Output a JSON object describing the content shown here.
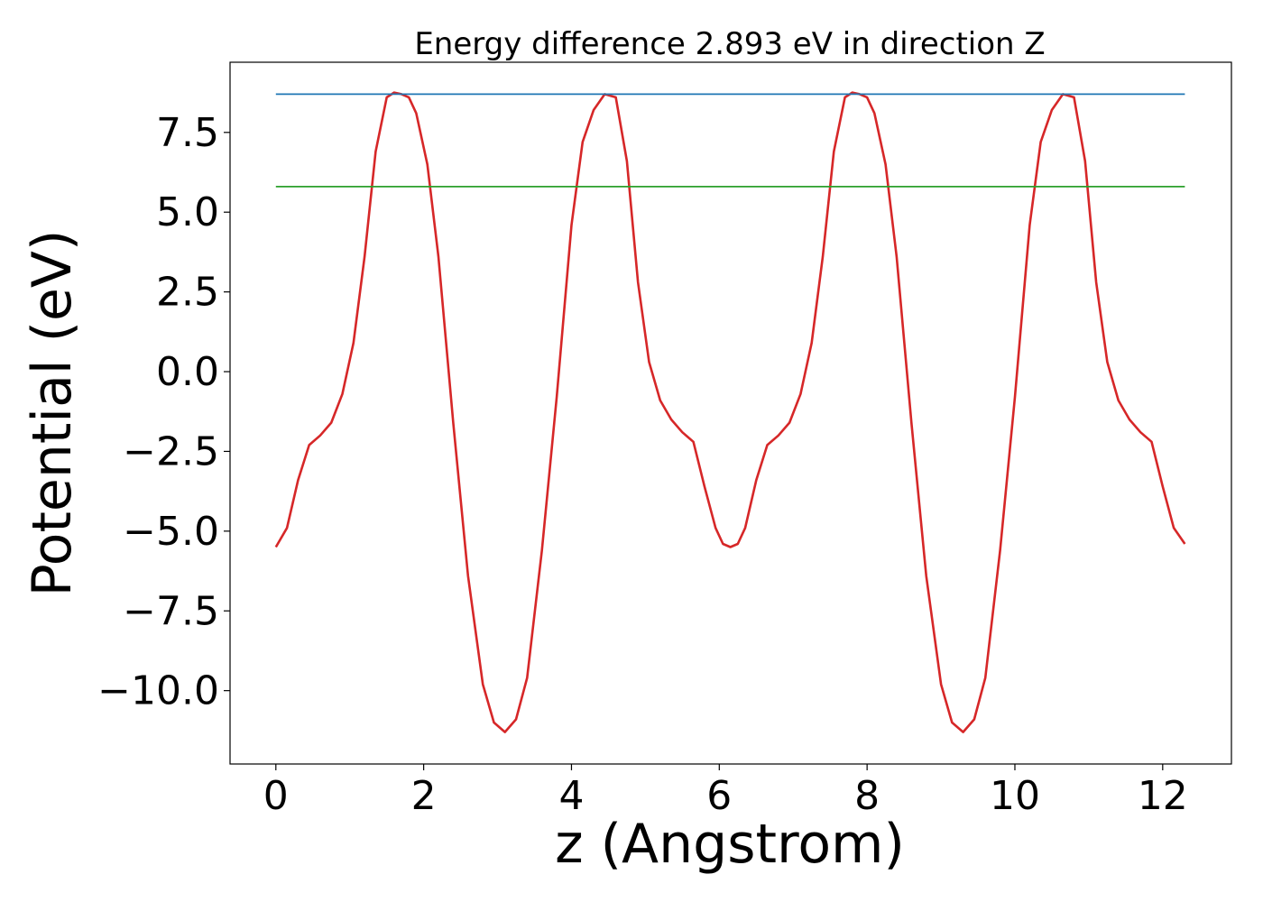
{
  "chart_data": {
    "type": "line",
    "title": "Energy difference 2.893 eV in direction Z",
    "xlabel": "z (Angstrom)",
    "ylabel": "Potential (eV)",
    "xlim": [
      -0.62,
      12.93
    ],
    "ylim": [
      -12.3,
      9.7
    ],
    "xticks": [
      0,
      2,
      4,
      6,
      8,
      10,
      12
    ],
    "xtick_labels": [
      "0",
      "2",
      "4",
      "6",
      "8",
      "10",
      "12"
    ],
    "yticks": [
      7.5,
      5.0,
      2.5,
      0.0,
      -2.5,
      -5.0,
      -7.5,
      -10.0
    ],
    "ytick_labels": [
      "7.5",
      "5.0",
      "2.5",
      "0.0",
      "−2.5",
      "−5.0",
      "−7.5",
      "−10.0"
    ],
    "grid": false,
    "series": [
      {
        "color": "#d62728",
        "x": [
          0.0,
          0.15,
          0.3,
          0.45,
          0.6,
          0.75,
          0.9,
          1.05,
          1.2,
          1.35,
          1.5,
          1.6,
          1.7,
          1.8,
          1.9,
          2.05,
          2.2,
          2.4,
          2.6,
          2.8,
          2.95,
          3.1,
          3.25,
          3.4,
          3.6,
          3.8,
          4.0,
          4.15,
          4.3,
          4.45,
          4.6,
          4.75,
          4.9,
          5.05,
          5.2,
          5.35,
          5.5,
          5.65,
          5.8,
          5.95,
          6.05,
          6.15,
          6.25,
          6.35,
          6.5,
          6.65,
          6.8,
          6.95,
          7.1,
          7.25,
          7.4,
          7.55,
          7.7,
          7.8,
          7.9,
          8.0,
          8.1,
          8.25,
          8.4,
          8.6,
          8.8,
          9.0,
          9.15,
          9.3,
          9.45,
          9.6,
          9.8,
          10.0,
          10.2,
          10.35,
          10.5,
          10.65,
          10.8,
          10.95,
          11.1,
          11.25,
          11.4,
          11.55,
          11.7,
          11.85,
          12.0,
          12.15,
          12.3
        ],
        "y": [
          -5.5,
          -4.9,
          -3.4,
          -2.3,
          -2.0,
          -1.6,
          -0.7,
          0.9,
          3.6,
          6.9,
          8.6,
          8.75,
          8.7,
          8.6,
          8.1,
          6.5,
          3.6,
          -1.6,
          -6.4,
          -9.8,
          -11.0,
          -11.3,
          -10.9,
          -9.6,
          -5.6,
          -0.8,
          4.6,
          7.2,
          8.2,
          8.7,
          8.6,
          6.6,
          2.8,
          0.3,
          -0.9,
          -1.5,
          -1.9,
          -2.2,
          -3.6,
          -4.9,
          -5.4,
          -5.5,
          -5.4,
          -4.9,
          -3.4,
          -2.3,
          -2.0,
          -1.6,
          -0.7,
          0.9,
          3.6,
          6.9,
          8.6,
          8.75,
          8.7,
          8.6,
          8.1,
          6.5,
          3.6,
          -1.6,
          -6.4,
          -9.8,
          -11.0,
          -11.3,
          -10.9,
          -9.6,
          -5.6,
          -0.8,
          4.6,
          7.2,
          8.2,
          8.7,
          8.6,
          6.6,
          2.8,
          0.3,
          -0.9,
          -1.5,
          -1.9,
          -2.2,
          -3.6,
          -4.9,
          -5.4
        ]
      },
      {
        "color": "#1f77b4",
        "x": [
          0.0,
          12.3
        ],
        "y": [
          8.7,
          8.7
        ]
      },
      {
        "color": "#2ca02c",
        "x": [
          0.0,
          12.3
        ],
        "y": [
          5.8,
          5.8
        ]
      }
    ]
  }
}
